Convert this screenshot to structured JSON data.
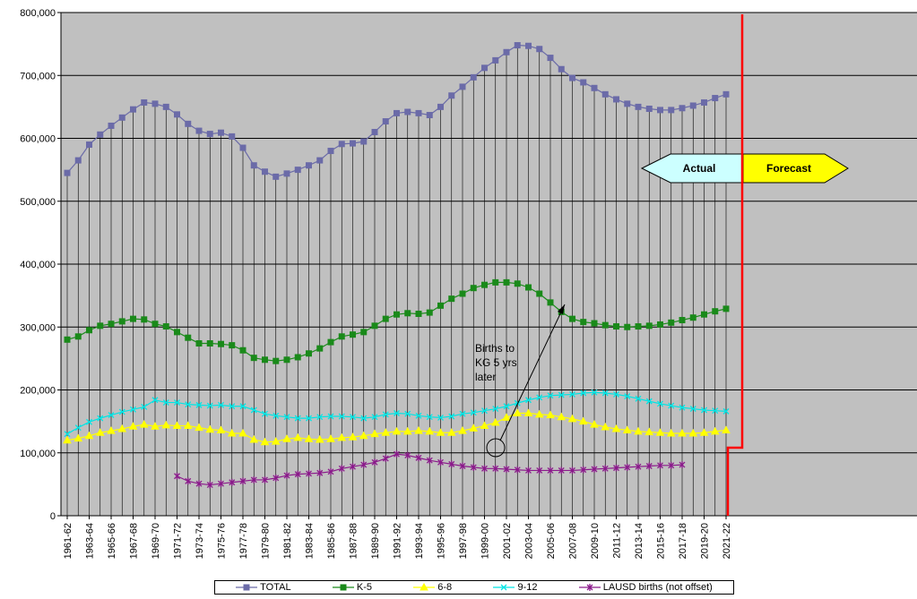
{
  "chart_data": {
    "type": "line",
    "title": "",
    "xlabel": "",
    "ylabel": "",
    "ylim": [
      0,
      800000
    ],
    "yticks": [
      "0",
      "100,000",
      "200,000",
      "300,000",
      "400,000",
      "500,000",
      "600,000",
      "700,000",
      "800,000"
    ],
    "grid": true,
    "legend_position": "bottom",
    "x_tick_labels": [
      "1961-62",
      "1963-64",
      "1965-66",
      "1967-68",
      "1969-70",
      "1971-72",
      "1973-74",
      "1975-76",
      "1977-78",
      "1979-80",
      "1981-82",
      "1983-84",
      "1985-86",
      "1987-88",
      "1989-90",
      "1991-92",
      "1993-94",
      "1995-96",
      "1997-98",
      "1999-00",
      "2001-02",
      "2003-04",
      "2005-06",
      "2007-08",
      "2009-10",
      "2011-12",
      "2013-14",
      "2015-16",
      "2017-18",
      "2019-20",
      "2021-22"
    ],
    "x_start_year": 1961,
    "series": [
      {
        "name": "TOTAL",
        "color": "#6b6ba8",
        "marker": "square",
        "values": [
          545000,
          565000,
          590000,
          606000,
          620000,
          633000,
          646000,
          657000,
          655000,
          650000,
          638000,
          623000,
          612000,
          607000,
          609000,
          603000,
          585000,
          557000,
          547000,
          539000,
          544000,
          550000,
          557000,
          565000,
          580000,
          591000,
          592000,
          595000,
          610000,
          627000,
          640000,
          642000,
          640000,
          637000,
          650000,
          668000,
          682000,
          697000,
          712000,
          724000,
          737000,
          748000,
          747000,
          742000,
          728000,
          710000,
          696000,
          689000,
          680000,
          670000,
          662000,
          655000,
          650000,
          647000,
          645000,
          645000,
          648000,
          652000,
          657000,
          664000,
          670000
        ]
      },
      {
        "name": "K-5",
        "color": "#1a8a1a",
        "marker": "square",
        "values": [
          280000,
          285000,
          295000,
          302000,
          305000,
          309000,
          313000,
          312000,
          305000,
          301000,
          292000,
          283000,
          274000,
          274000,
          273000,
          271000,
          263000,
          251000,
          248000,
          246000,
          248000,
          252000,
          258000,
          266000,
          276000,
          285000,
          288000,
          292000,
          302000,
          313000,
          320000,
          322000,
          321000,
          323000,
          334000,
          345000,
          353000,
          362000,
          367000,
          371000,
          371000,
          369000,
          363000,
          353000,
          339000,
          324000,
          313000,
          308000,
          306000,
          303000,
          301000,
          300000,
          301000,
          302000,
          304000,
          307000,
          311000,
          315000,
          320000,
          325000,
          329000
        ]
      },
      {
        "name": "6-8",
        "color": "#ffff00",
        "marker": "triangle",
        "values": [
          120000,
          123000,
          127000,
          132000,
          135000,
          138000,
          142000,
          145000,
          142000,
          144000,
          143000,
          143000,
          140000,
          137000,
          136000,
          131000,
          131000,
          121000,
          117000,
          118000,
          122000,
          124000,
          122000,
          121000,
          122000,
          124000,
          125000,
          127000,
          130000,
          132000,
          134000,
          134000,
          135000,
          134000,
          132000,
          132000,
          135000,
          139000,
          143000,
          148000,
          156000,
          163000,
          163000,
          161000,
          160000,
          157000,
          154000,
          150000,
          145000,
          141000,
          138000,
          136000,
          134000,
          133000,
          132000,
          131000,
          131000,
          131000,
          132000,
          134000,
          136000
        ]
      },
      {
        "name": "9-12",
        "color": "#00e5e5",
        "marker": "x",
        "values": [
          130000,
          140000,
          149000,
          155000,
          160000,
          165000,
          169000,
          173000,
          184000,
          180000,
          180000,
          177000,
          176000,
          175000,
          176000,
          174000,
          174000,
          168000,
          162000,
          159000,
          157000,
          155000,
          155000,
          157000,
          158000,
          158000,
          157000,
          155000,
          157000,
          161000,
          163000,
          162000,
          159000,
          157000,
          156000,
          158000,
          162000,
          164000,
          167000,
          170000,
          174000,
          179000,
          184000,
          188000,
          191000,
          192000,
          193000,
          195000,
          196000,
          195000,
          193000,
          190000,
          186000,
          182000,
          178000,
          175000,
          172000,
          170000,
          168000,
          167000,
          166000
        ]
      },
      {
        "name": "LAUSD births (not offset)",
        "color": "#8b1a8b",
        "marker": "star",
        "values": [
          null,
          null,
          null,
          null,
          null,
          null,
          null,
          null,
          null,
          null,
          63000,
          55000,
          51000,
          49000,
          51000,
          53000,
          55000,
          57000,
          57000,
          60000,
          64000,
          66000,
          67000,
          68000,
          70000,
          75000,
          78000,
          81000,
          85000,
          91000,
          98000,
          96000,
          92000,
          88000,
          85000,
          82000,
          79000,
          77000,
          75000,
          75000,
          74000,
          73000,
          72000,
          72000,
          72000,
          72000,
          72000,
          73000,
          74000,
          75000,
          76000,
          77000,
          78000,
          79000,
          80000,
          80000,
          81000,
          null,
          null,
          null,
          null
        ]
      }
    ],
    "annotations": [
      {
        "text_lines": [
          "Births to",
          "KG 5 yrs",
          "later"
        ]
      },
      {
        "label": "Actual",
        "color": "#ccffff"
      },
      {
        "label": "Forecast",
        "color": "#ffff00"
      }
    ],
    "forecast_line_color": "#ff0000"
  }
}
